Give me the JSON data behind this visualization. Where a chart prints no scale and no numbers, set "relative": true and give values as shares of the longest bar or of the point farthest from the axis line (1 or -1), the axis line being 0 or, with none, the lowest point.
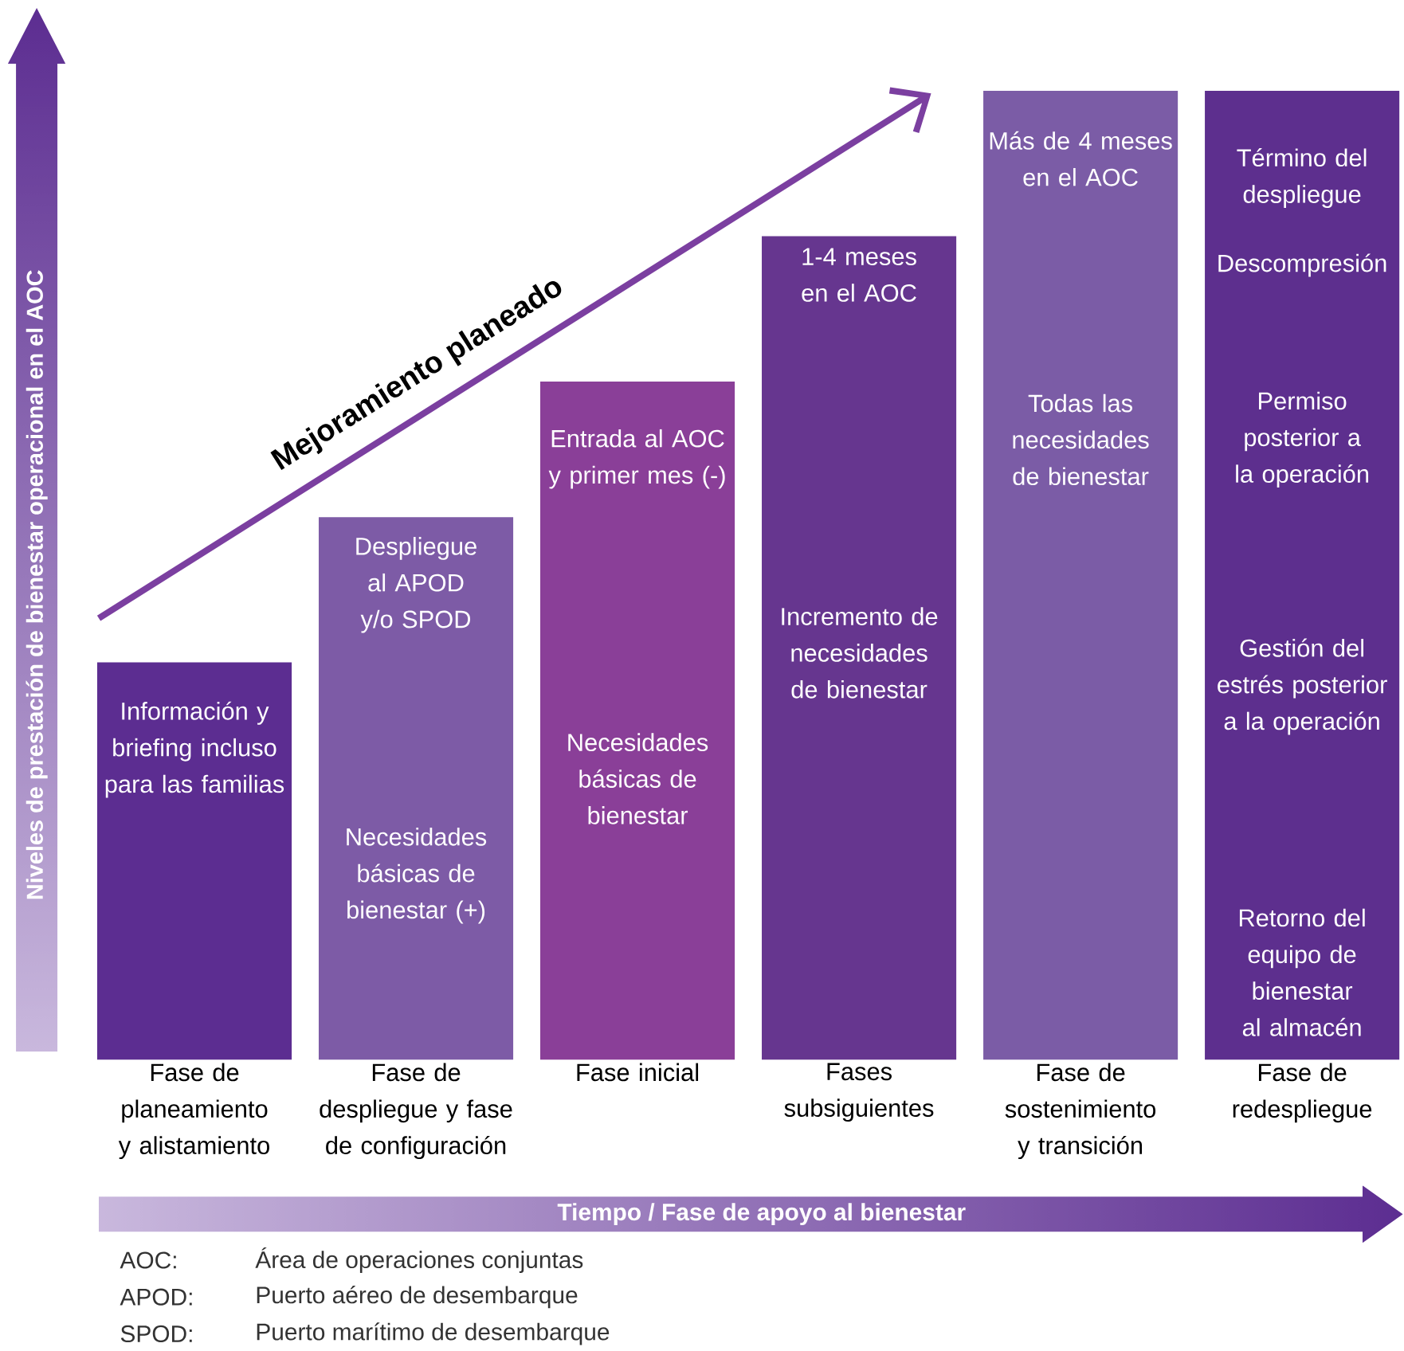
{
  "chart_data": {
    "type": "bar",
    "relative": true,
    "categories": [
      "Fase de planeamiento y alistamiento",
      "Fase de despliegue y fase de configuración",
      "Fase inicial",
      "Fases subsiguientes",
      "Fase de sostenimiento y transición",
      "Fase de redespliegue"
    ],
    "values": [
      0.41,
      0.56,
      0.7,
      0.85,
      1,
      1
    ],
    "colors": [
      "#5c2d91",
      "#7d5ba6",
      "#8a3f98",
      "#66368f",
      "#7b5ca6",
      "#5d2f8e"
    ],
    "xlabel": "Tiempo / Fase de apoyo al bienestar",
    "ylabel": "Niveles de prestación de bienestar operacional en el AOC",
    "annotations": [
      "Mejoramiento planeado",
      "Información y briefing incluso para las familias",
      "Despliegue al APOD y/o SPOD",
      "Necesidades básicas de bienestar (+)",
      "Entrada al AOC y primer mes (-)",
      "Necesidades básicas de bienestar",
      "1-4 meses en el AOC",
      "Incremento de necesidades de bienestar",
      "Más de 4 meses en el AOC",
      "Todas las necesidades de bienestar",
      "Término del despliegue",
      "Descompresión",
      "Permiso posterior a la operación",
      "Gestión del estrés posterior a la operación",
      "Retorno del equipo de bienestar al almacén",
      "AOC:",
      "Área de operaciones conjuntas",
      "APOD:",
      "Puerto aéreo de desembarque",
      "SPOD:",
      "Puerto marítimo de desembarque"
    ]
  }
}
